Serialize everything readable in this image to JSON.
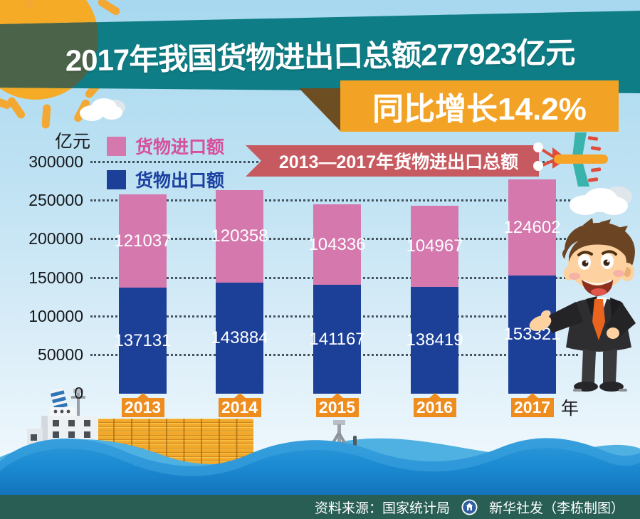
{
  "title": {
    "main": "2017年我国货物进出口总额277923亿元",
    "sub": "同比增长14.2%"
  },
  "legend": [
    {
      "label": "货物进口额",
      "color": "#d478ae",
      "text_color": "#d6509b"
    },
    {
      "label": "货物出口额",
      "color": "#1c3f97",
      "text_color": "#1d41a0"
    }
  ],
  "ribbon": {
    "label": "2013—2017年货物进出口总额"
  },
  "axis": {
    "unit_y": "亿元",
    "unit_x": "年",
    "ticks": [
      300000,
      250000,
      200000,
      150000,
      100000,
      50000,
      0
    ]
  },
  "chart_data": {
    "type": "bar",
    "stacked": true,
    "categories": [
      "2013",
      "2014",
      "2015",
      "2016",
      "2017"
    ],
    "series": [
      {
        "name": "货物出口额",
        "color": "#1c3f97",
        "values": [
          137131,
          143884,
          141167,
          138419,
          153321
        ]
      },
      {
        "name": "货物进口额",
        "color": "#d478ae",
        "values": [
          121037,
          120358,
          104336,
          104967,
          124602
        ]
      }
    ],
    "totals": [
      258168,
      264242,
      245503,
      243386,
      277923
    ],
    "title": "2013—2017年货物进出口总额",
    "xlabel": "年",
    "ylabel": "亿元",
    "ylim": [
      0,
      300000
    ],
    "grid": true,
    "legend_position": "top-left"
  },
  "footer": {
    "source": "资料来源：国家统计局",
    "credit": "新华社发（李栋制图）",
    "logo": "xinhua-emblem"
  },
  "colors": {
    "band_teal": "#0e7d85",
    "banner_orange": "#f2a325",
    "ribbon_red": "#c75a60",
    "badge_orange": "#ee8c1d",
    "bar_import_pink": "#d478ae",
    "bar_export_blue": "#1c3f97",
    "footer_green": "#285e54",
    "sun_orange": "#f5ab26",
    "wave_blue": "#1b8ad2"
  }
}
